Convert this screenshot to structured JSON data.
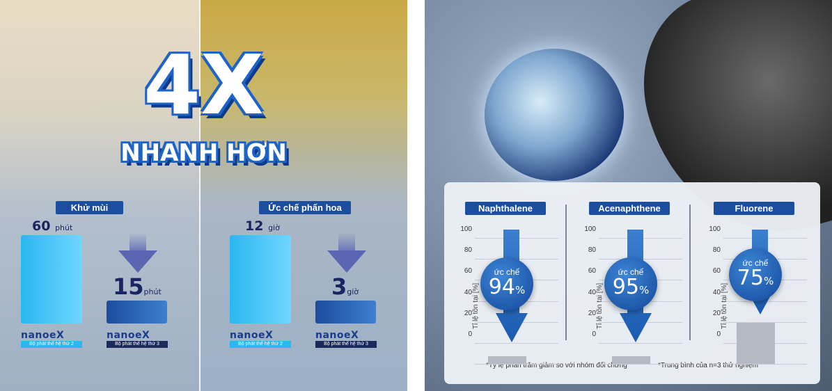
{
  "left": {
    "headline": "4X",
    "subheadline": "NHANH HƠN",
    "groups": [
      {
        "label": "Khử mùi",
        "before": {
          "value": "60",
          "unit": "phút"
        },
        "after": {
          "value": "15",
          "unit": "phút"
        }
      },
      {
        "label": "Ức chế phấn hoa",
        "before": {
          "value": "12",
          "unit": "giờ"
        },
        "after": {
          "value": "3",
          "unit": "giờ"
        }
      }
    ],
    "brand": "nanoeX",
    "gen2": "Bộ phát thế hệ thứ 2",
    "gen3": "Bộ phát thế hệ thứ 3",
    "colors": {
      "gen2": "#2bb7f0",
      "gen3": "#1d4c9e",
      "tag": "#1c4ea0"
    }
  },
  "right": {
    "charts": [
      {
        "title": "Naphthalene",
        "reduction": "94",
        "remaining": 6
      },
      {
        "title": "Acenaphthene",
        "reduction": "95",
        "remaining": 5
      },
      {
        "title": "Fluorene",
        "reduction": "75",
        "remaining": 25
      }
    ],
    "ylabel": "Tỉ lệ tồn tại [%]",
    "yticks": [
      "100",
      "80",
      "60",
      "40",
      "20",
      "0"
    ],
    "circle_label": "ức chế",
    "percent": "%",
    "note1": "*Tỷ lệ phần trăm giảm so với nhóm đối chứng",
    "note2": "*Trung bình của n=3 thử nghiệm"
  }
}
